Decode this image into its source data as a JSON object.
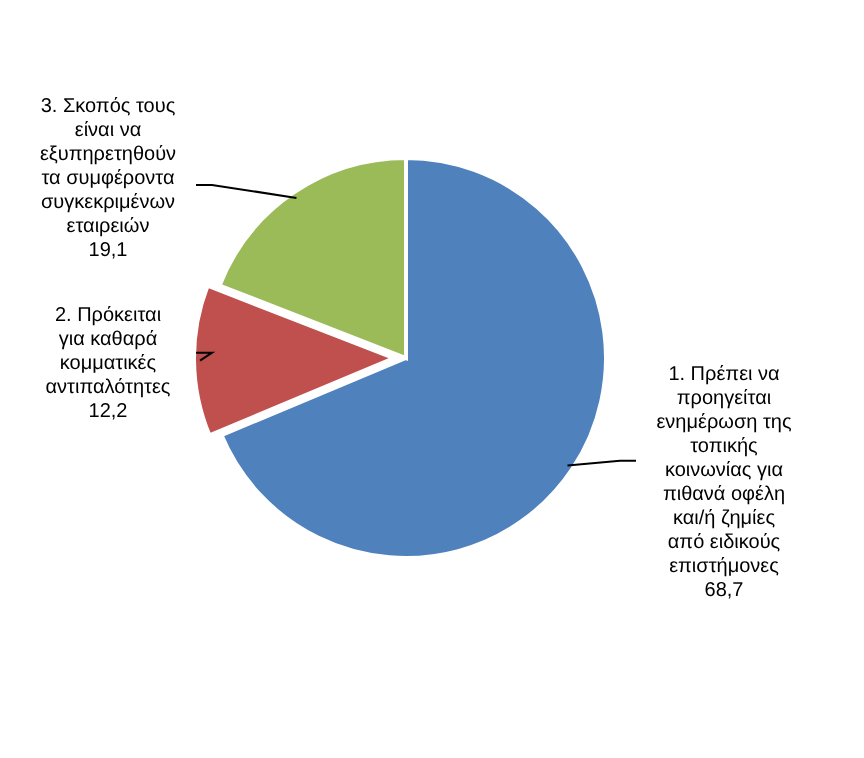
{
  "chart_data": {
    "type": "pie",
    "categories": [
      "1. Πρέπει να προηγείται ενημέρωση της τοπικής κοινωνίας για πιθανά οφέλη και/ή ζημίες από ειδικούς επιστήμονες",
      "2. Πρόκειται για καθαρά κομματικές αντιπαλότητες",
      "3. Σκοπός τους είναι να εξυπηρετηθούν τα συμφέροντα συγκεκριμένων εταιρειών"
    ],
    "values": [
      68.7,
      12.2,
      19.1
    ],
    "colors": [
      "#4f81bd",
      "#c0504d",
      "#9bbb59"
    ],
    "value_labels": [
      "68,7",
      "12,2",
      "19,1"
    ]
  }
}
